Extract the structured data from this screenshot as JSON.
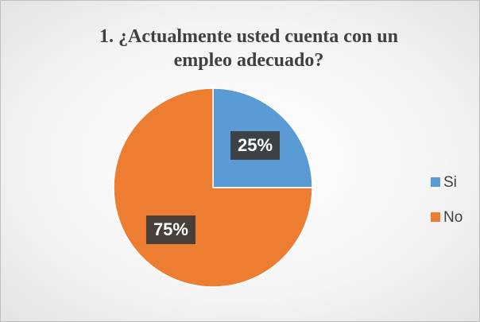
{
  "chart_data": {
    "type": "pie",
    "title": "1. ¿Actualmente usted cuenta con un empleo adecuado?",
    "categories": [
      "Si",
      "No"
    ],
    "values": [
      25,
      75
    ],
    "value_labels": [
      "25%",
      "75%"
    ],
    "colors": [
      "#5b9bd5",
      "#ed7d31"
    ],
    "legend": "right"
  }
}
